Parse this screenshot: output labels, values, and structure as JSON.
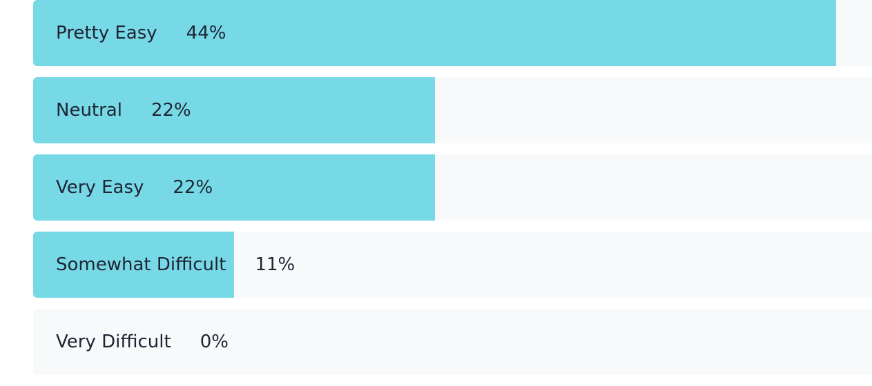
{
  "chart_data": {
    "type": "bar",
    "orientation": "horizontal",
    "categories": [
      "Pretty Easy",
      "Neutral",
      "Very Easy",
      "Somewhat Difficult",
      "Very Difficult"
    ],
    "values": [
      44,
      22,
      22,
      11,
      0
    ],
    "value_labels": [
      "44%",
      "22%",
      "22%",
      "11%",
      "0%"
    ],
    "color": "#77d8e6"
  }
}
